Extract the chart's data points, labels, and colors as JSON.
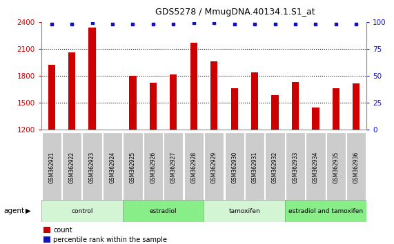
{
  "title": "GDS5278 / MmugDNA.40134.1.S1_at",
  "samples": [
    "GSM362921",
    "GSM362922",
    "GSM362923",
    "GSM362924",
    "GSM362925",
    "GSM362926",
    "GSM362927",
    "GSM362928",
    "GSM362929",
    "GSM362930",
    "GSM362931",
    "GSM362932",
    "GSM362933",
    "GSM362934",
    "GSM362935",
    "GSM362936"
  ],
  "counts": [
    1920,
    2060,
    2340,
    1200,
    1800,
    1720,
    1810,
    2170,
    1960,
    1660,
    1840,
    1580,
    1730,
    1440,
    1660,
    1710
  ],
  "percentile_values": [
    98,
    98,
    99,
    98,
    98,
    98,
    98,
    99,
    99,
    98,
    98,
    98,
    98,
    98,
    98,
    98
  ],
  "bar_color": "#cc0000",
  "dot_color": "#1111cc",
  "ylim_left": [
    1200,
    2400
  ],
  "ylim_right": [
    0,
    100
  ],
  "yticks_left": [
    1200,
    1500,
    1800,
    2100,
    2400
  ],
  "yticks_right": [
    0,
    25,
    50,
    75,
    100
  ],
  "groups": [
    {
      "label": "control",
      "start": 0,
      "end": 4,
      "color": "#d4f5d4"
    },
    {
      "label": "estradiol",
      "start": 4,
      "end": 8,
      "color": "#88ee88"
    },
    {
      "label": "tamoxifen",
      "start": 8,
      "end": 12,
      "color": "#d4f5d4"
    },
    {
      "label": "estradiol and tamoxifen",
      "start": 12,
      "end": 16,
      "color": "#88ee88"
    }
  ],
  "xlabel_agent": "agent",
  "legend_count_label": "count",
  "legend_percentile_label": "percentile rank within the sample",
  "tick_bg_color": "#cccccc",
  "plot_bg_color": "#ffffff",
  "grid_color": "#000000"
}
